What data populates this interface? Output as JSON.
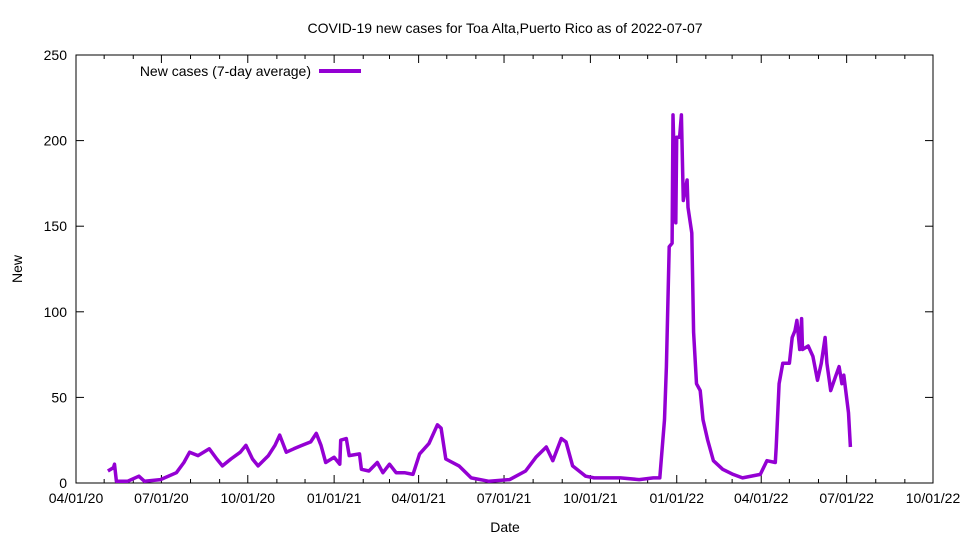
{
  "chart_data": {
    "type": "line",
    "title": "COVID-19 new cases for Toa Alta,Puerto Rico as of 2022-07-07",
    "xlabel": "Date",
    "ylabel": "New",
    "x_units": "days since 04/01/20",
    "xlim": [
      0,
      913
    ],
    "ylim": [
      0,
      250
    ],
    "yticks": [
      "0",
      "50",
      "100",
      "150",
      "200",
      "250"
    ],
    "xtick_labels": [
      "04/01/20",
      "07/01/20",
      "10/01/20",
      "01/01/21",
      "04/01/21",
      "07/01/21",
      "10/01/21",
      "01/01/22",
      "04/01/22",
      "07/01/22",
      "10/01/22"
    ],
    "legend": {
      "position": "top-left",
      "entries": [
        "New cases (7-day average)"
      ]
    },
    "grid": false,
    "series": [
      {
        "name": "New cases (7-day average)",
        "color": "#9400d3",
        "points": [
          [
            34,
            7
          ],
          [
            40,
            9
          ],
          [
            41,
            11
          ],
          [
            43,
            1
          ],
          [
            55,
            1
          ],
          [
            67,
            4
          ],
          [
            73,
            1
          ],
          [
            90,
            2
          ],
          [
            107,
            6
          ],
          [
            115,
            12
          ],
          [
            121,
            18
          ],
          [
            130,
            16
          ],
          [
            142,
            20
          ],
          [
            150,
            14
          ],
          [
            156,
            10
          ],
          [
            165,
            14
          ],
          [
            175,
            18
          ],
          [
            181,
            22
          ],
          [
            188,
            14
          ],
          [
            194,
            10
          ],
          [
            205,
            16
          ],
          [
            212,
            22
          ],
          [
            217,
            28
          ],
          [
            224,
            18
          ],
          [
            232,
            20
          ],
          [
            241,
            22
          ],
          [
            250,
            24
          ],
          [
            256,
            29
          ],
          [
            261,
            22
          ],
          [
            266,
            12
          ],
          [
            275,
            15
          ],
          [
            281,
            11
          ],
          [
            282,
            25
          ],
          [
            288,
            26
          ],
          [
            291,
            16
          ],
          [
            302,
            17
          ],
          [
            304,
            8
          ],
          [
            312,
            7
          ],
          [
            321,
            12
          ],
          [
            327,
            6
          ],
          [
            334,
            11
          ],
          [
            341,
            6
          ],
          [
            350,
            6
          ],
          [
            359,
            5
          ],
          [
            366,
            17
          ],
          [
            376,
            23
          ],
          [
            385,
            34
          ],
          [
            389,
            32
          ],
          [
            394,
            14
          ],
          [
            408,
            10
          ],
          [
            421,
            3
          ],
          [
            440,
            1
          ],
          [
            462,
            2
          ],
          [
            479,
            7
          ],
          [
            490,
            15
          ],
          [
            501,
            21
          ],
          [
            508,
            13
          ],
          [
            517,
            26
          ],
          [
            522,
            24
          ],
          [
            529,
            10
          ],
          [
            543,
            4
          ],
          [
            552,
            3
          ],
          [
            580,
            3
          ],
          [
            600,
            2
          ],
          [
            615,
            3
          ],
          [
            622,
            3
          ],
          [
            627,
            37
          ],
          [
            629,
            68
          ],
          [
            632,
            138
          ],
          [
            635,
            140
          ],
          [
            636,
            215
          ],
          [
            639,
            152
          ],
          [
            640,
            202
          ],
          [
            643,
            202
          ],
          [
            645,
            215
          ],
          [
            647,
            165
          ],
          [
            651,
            177
          ],
          [
            652,
            161
          ],
          [
            656,
            146
          ],
          [
            658,
            88
          ],
          [
            661,
            58
          ],
          [
            665,
            54
          ],
          [
            668,
            37
          ],
          [
            673,
            25
          ],
          [
            679,
            13
          ],
          [
            689,
            8
          ],
          [
            700,
            5
          ],
          [
            710,
            3
          ],
          [
            729,
            5
          ],
          [
            736,
            13
          ],
          [
            745,
            12
          ],
          [
            746,
            21
          ],
          [
            749,
            58
          ],
          [
            753,
            70
          ],
          [
            760,
            70
          ],
          [
            763,
            85
          ],
          [
            766,
            89
          ],
          [
            768,
            95
          ],
          [
            771,
            78
          ],
          [
            773,
            96
          ],
          [
            774,
            78
          ],
          [
            780,
            80
          ],
          [
            785,
            74
          ],
          [
            790,
            60
          ],
          [
            794,
            70
          ],
          [
            798,
            85
          ],
          [
            800,
            70
          ],
          [
            804,
            54
          ],
          [
            809,
            62
          ],
          [
            813,
            68
          ],
          [
            816,
            58
          ],
          [
            818,
            63
          ],
          [
            823,
            41
          ],
          [
            825,
            21
          ]
        ]
      }
    ]
  }
}
